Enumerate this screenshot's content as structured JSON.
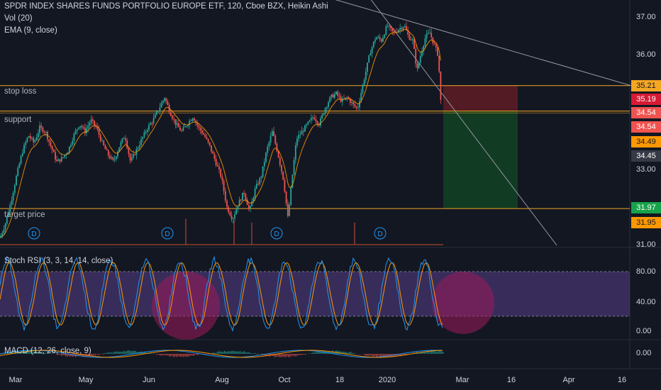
{
  "header": {
    "title": "SPDR INDEX SHARES FUNDS PORTFOLIO EUROPE ETF, 120, Cboe BZX, Heikin Ashi",
    "vol": "Vol (20)",
    "ema": "EMA (9, close)"
  },
  "levels": {
    "stop_loss": "stop loss",
    "support": "support",
    "target": "target price"
  },
  "tags": [
    {
      "text": "35.21",
      "color": "#f5a623",
      "fg": "#131722"
    },
    {
      "text": "35.19",
      "color": "#d71a34",
      "fg": "#ffffff"
    },
    {
      "text": "34.54",
      "color": "#ef5350",
      "fg": "#ffffff"
    },
    {
      "text": "34.54",
      "color": "#ef5350",
      "fg": "#ffffff"
    },
    {
      "text": "34.49",
      "color": "#ff9800",
      "fg": "#131722"
    },
    {
      "text": "34.45",
      "color": "#363a45",
      "fg": "#ffffff"
    },
    {
      "text": "31.97",
      "color": "#17a34a",
      "fg": "#ffffff"
    },
    {
      "text": "31.95",
      "color": "#ff9800",
      "fg": "#131722"
    }
  ],
  "price_axis": [
    "37.00",
    "36.00",
    "33.00",
    "31.00"
  ],
  "rsi": {
    "title": "Stoch RSI (3, 3, 14, 14, close)",
    "axis": [
      "80.00",
      "40.00",
      "0.00"
    ]
  },
  "macd": {
    "title": "MACD (12, 26, close, 9)",
    "axis": [
      "0.00"
    ]
  },
  "time_axis": [
    "Mar",
    "May",
    "Jun",
    "Aug",
    "Oct",
    "18",
    "2020",
    "Mar",
    "16",
    "Apr",
    "16"
  ],
  "dividend_marker": "D",
  "colors": {
    "up": "#26a69a",
    "down": "#ef5350",
    "ema": "#ff9800",
    "level": "#f5a623",
    "rsi_band": "#7e57c2",
    "rsi_k": "#2196f3",
    "rsi_d": "#ff9800",
    "stop_zone": "#5b1c24",
    "target_zone": "#123d24",
    "circle": "#9c1a5b"
  },
  "chart_data": {
    "type": "candlestick",
    "style": "Heikin Ashi",
    "symbol": "SPDR INDEX SHARES FUNDS PORTFOLIO EUROPE ETF",
    "interval": "120",
    "exchange": "Cboe BZX",
    "x_ticks": [
      "Mar",
      "May",
      "Jun",
      "Aug",
      "Oct",
      "18",
      "2020",
      "Mar",
      "16",
      "Apr",
      "16"
    ],
    "y_ticks": [
      37.0,
      36.0,
      33.0,
      31.0
    ],
    "ylim": [
      30.9,
      37.4
    ],
    "close_path": [
      [
        0,
        31.2
      ],
      [
        8,
        31.6
      ],
      [
        16,
        32.2
      ],
      [
        24,
        32.9
      ],
      [
        32,
        33.5
      ],
      [
        40,
        33.9
      ],
      [
        48,
        33.7
      ],
      [
        56,
        34.1
      ],
      [
        64,
        34.0
      ],
      [
        72,
        33.6
      ],
      [
        80,
        33.2
      ],
      [
        88,
        33.3
      ],
      [
        96,
        33.5
      ],
      [
        104,
        33.9
      ],
      [
        112,
        34.2
      ],
      [
        120,
        34.0
      ],
      [
        128,
        34.3
      ],
      [
        136,
        34.1
      ],
      [
        144,
        33.7
      ],
      [
        152,
        33.4
      ],
      [
        160,
        33.2
      ],
      [
        168,
        33.6
      ],
      [
        176,
        33.9
      ],
      [
        184,
        33.2
      ],
      [
        192,
        33.5
      ],
      [
        200,
        33.8
      ],
      [
        208,
        34.1
      ],
      [
        216,
        34.3
      ],
      [
        224,
        34.6
      ],
      [
        232,
        34.9
      ],
      [
        240,
        34.5
      ],
      [
        248,
        34.2
      ],
      [
        256,
        34.0
      ],
      [
        264,
        34.2
      ],
      [
        272,
        34.4
      ],
      [
        280,
        34.1
      ],
      [
        288,
        33.9
      ],
      [
        296,
        33.6
      ],
      [
        304,
        33.2
      ],
      [
        312,
        32.8
      ],
      [
        320,
        32.0
      ],
      [
        328,
        31.7
      ],
      [
        336,
        32.1
      ],
      [
        344,
        32.4
      ],
      [
        352,
        31.9
      ],
      [
        360,
        32.5
      ],
      [
        368,
        32.8
      ],
      [
        376,
        33.5
      ],
      [
        384,
        34.0
      ],
      [
        392,
        33.4
      ],
      [
        400,
        32.7
      ],
      [
        406,
        31.7
      ],
      [
        412,
        32.8
      ],
      [
        418,
        33.8
      ],
      [
        426,
        34.0
      ],
      [
        434,
        34.2
      ],
      [
        442,
        34.4
      ],
      [
        450,
        34.2
      ],
      [
        458,
        34.6
      ],
      [
        466,
        34.9
      ],
      [
        474,
        35.0
      ],
      [
        482,
        34.8
      ],
      [
        490,
        34.9
      ],
      [
        498,
        34.7
      ],
      [
        504,
        34.6
      ],
      [
        510,
        35.1
      ],
      [
        516,
        35.6
      ],
      [
        522,
        36.1
      ],
      [
        530,
        36.5
      ],
      [
        538,
        36.4
      ],
      [
        546,
        36.8
      ],
      [
        554,
        36.6
      ],
      [
        562,
        36.7
      ],
      [
        570,
        36.8
      ],
      [
        576,
        36.5
      ],
      [
        582,
        36.4
      ],
      [
        588,
        35.6
      ],
      [
        594,
        36.1
      ],
      [
        600,
        36.5
      ],
      [
        606,
        36.6
      ],
      [
        612,
        36.3
      ],
      [
        618,
        36.0
      ],
      [
        622,
        34.6
      ]
    ],
    "volume_spikes": [
      [
        262,
        31.4
      ],
      [
        330,
        31.35
      ],
      [
        355,
        31.3
      ],
      [
        500,
        31.3
      ]
    ],
    "dividends_x": [
      48,
      236,
      390,
      536
    ],
    "trend_line_1": {
      "from": [
        450,
        37.6
      ],
      "to": [
        890,
        35.21
      ]
    },
    "trend_line_2": {
      "from": [
        510,
        37.8
      ],
      "to": [
        785,
        31.0
      ]
    },
    "horizontal_levels": [
      {
        "name": "stop loss",
        "value": 35.21
      },
      {
        "name": "support",
        "value": 34.54
      },
      {
        "name": "target price",
        "value": 31.97
      }
    ],
    "position": {
      "x_start": 625,
      "x_end": 730,
      "entry": 34.54,
      "stop": 35.21,
      "target": 31.97
    },
    "stoch_rsi": {
      "bands": [
        20,
        80
      ],
      "ylim": [
        -5,
        95
      ]
    },
    "macd": {
      "zero": 0.0
    }
  }
}
